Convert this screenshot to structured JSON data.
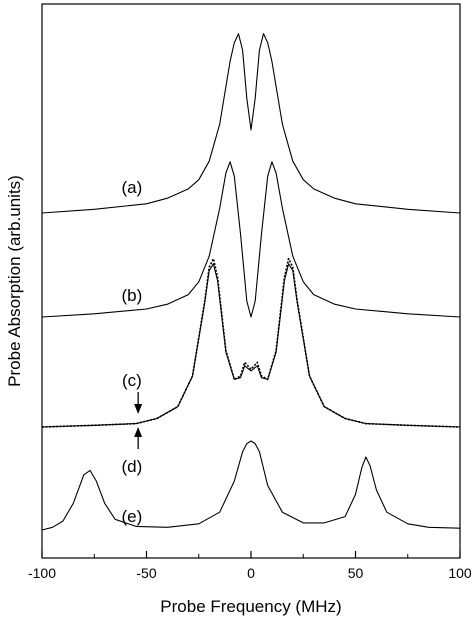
{
  "chart_data": {
    "type": "line",
    "xlabel": "Probe Frequency (MHz)",
    "ylabel": "Probe Absorption (arb.units)",
    "xlim": [
      -100,
      100
    ],
    "xticks": [
      -100,
      -50,
      0,
      50,
      100
    ],
    "grid": false,
    "y_tick_labels_shown": false,
    "series": [
      {
        "name": "(a)",
        "style": "solid",
        "x": [
          -100,
          -75,
          -50,
          -40,
          -30,
          -25,
          -20,
          -15,
          -10,
          -8,
          -6,
          -4,
          -2,
          0,
          2,
          4,
          6,
          8,
          10,
          15,
          20,
          25,
          30,
          40,
          50,
          75,
          100
        ],
        "y": [
          0.0,
          0.02,
          0.05,
          0.08,
          0.13,
          0.18,
          0.28,
          0.48,
          0.82,
          0.92,
          0.97,
          0.88,
          0.62,
          0.45,
          0.62,
          0.88,
          0.97,
          0.92,
          0.82,
          0.48,
          0.28,
          0.18,
          0.13,
          0.08,
          0.05,
          0.02,
          0.0
        ]
      },
      {
        "name": "(b)",
        "style": "solid",
        "x": [
          -100,
          -75,
          -50,
          -40,
          -30,
          -25,
          -20,
          -15,
          -12,
          -10,
          -8,
          -5,
          -2,
          0,
          2,
          5,
          8,
          10,
          12,
          15,
          20,
          25,
          30,
          40,
          50,
          75,
          100
        ],
        "y": [
          0.0,
          0.02,
          0.05,
          0.08,
          0.14,
          0.22,
          0.38,
          0.68,
          0.9,
          0.97,
          0.88,
          0.52,
          0.1,
          0.0,
          0.1,
          0.52,
          0.88,
          0.97,
          0.9,
          0.68,
          0.38,
          0.22,
          0.14,
          0.08,
          0.05,
          0.02,
          0.0
        ]
      },
      {
        "name": "(c)",
        "style": "dotted",
        "x": [
          -100,
          -75,
          -55,
          -45,
          -35,
          -28,
          -22,
          -20,
          -18,
          -16,
          -12,
          -8,
          -5,
          -3,
          0,
          3,
          5,
          8,
          12,
          16,
          18,
          20,
          22,
          28,
          35,
          45,
          55,
          75,
          100
        ],
        "y": [
          0.0,
          0.01,
          0.02,
          0.05,
          0.12,
          0.3,
          0.75,
          0.94,
          0.99,
          0.88,
          0.45,
          0.28,
          0.3,
          0.38,
          0.34,
          0.38,
          0.3,
          0.28,
          0.45,
          0.88,
          0.99,
          0.94,
          0.75,
          0.3,
          0.12,
          0.05,
          0.02,
          0.01,
          0.0
        ]
      },
      {
        "name": "(d)",
        "style": "solid",
        "x": [
          -100,
          -75,
          -55,
          -45,
          -35,
          -28,
          -22,
          -20,
          -18,
          -16,
          -12,
          -8,
          -5,
          -3,
          0,
          3,
          5,
          8,
          12,
          16,
          18,
          20,
          22,
          28,
          35,
          45,
          55,
          75,
          100
        ],
        "y": [
          0.0,
          0.01,
          0.02,
          0.05,
          0.12,
          0.3,
          0.74,
          0.92,
          0.96,
          0.86,
          0.44,
          0.28,
          0.29,
          0.36,
          0.33,
          0.36,
          0.29,
          0.28,
          0.44,
          0.86,
          0.96,
          0.92,
          0.74,
          0.3,
          0.12,
          0.05,
          0.02,
          0.01,
          0.0
        ]
      },
      {
        "name": "(e)",
        "style": "solid",
        "x": [
          -100,
          -95,
          -90,
          -85,
          -80,
          -77,
          -74,
          -70,
          -65,
          -55,
          -40,
          -25,
          -15,
          -8,
          -4,
          -2,
          0,
          2,
          4,
          8,
          15,
          25,
          35,
          45,
          50,
          53,
          55,
          57,
          60,
          65,
          75,
          85,
          100
        ],
        "y": [
          0.0,
          0.03,
          0.1,
          0.3,
          0.62,
          0.67,
          0.55,
          0.3,
          0.12,
          0.04,
          0.03,
          0.07,
          0.2,
          0.55,
          0.88,
          0.97,
          1.0,
          0.97,
          0.88,
          0.5,
          0.2,
          0.08,
          0.08,
          0.15,
          0.4,
          0.7,
          0.82,
          0.72,
          0.45,
          0.2,
          0.07,
          0.03,
          0.02
        ]
      }
    ],
    "annotations": [
      {
        "text": "(a)",
        "x": -57,
        "series": "(a)"
      },
      {
        "text": "(b)",
        "x": -57,
        "series": "(b)"
      },
      {
        "text": "(c)",
        "x": -57,
        "series": "(c)"
      },
      {
        "text": "(d)",
        "x": -57,
        "series": "(d)"
      },
      {
        "text": "(e)",
        "x": -57,
        "series": "(e)"
      },
      {
        "text": "↓",
        "x": -54,
        "kind": "arrow-down"
      },
      {
        "text": "↑",
        "x": -54,
        "kind": "arrow-up"
      }
    ]
  }
}
